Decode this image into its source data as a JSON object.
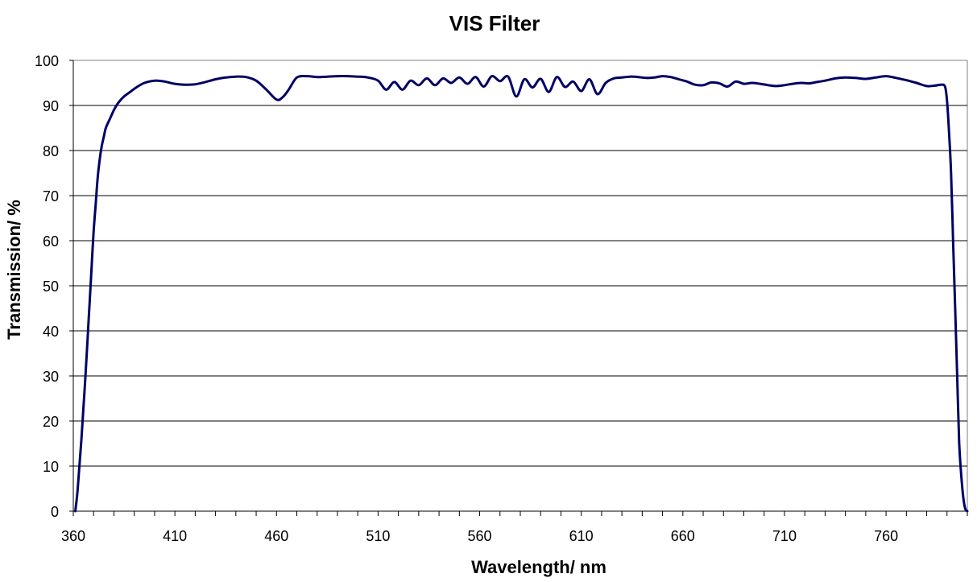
{
  "chart_data": {
    "type": "line",
    "title": "VIS Filter",
    "xlabel": "Wavelength/ nm",
    "ylabel": "Transmission/ %",
    "xlim": [
      360,
      800
    ],
    "ylim": [
      0,
      100
    ],
    "x_tick_labels": [
      "360",
      "410",
      "460",
      "510",
      "560",
      "610",
      "660",
      "710",
      "760"
    ],
    "x_ticks": [
      360,
      410,
      460,
      510,
      560,
      610,
      660,
      710,
      760
    ],
    "x_minor_tick_step": 10,
    "y_tick_labels": [
      "0",
      "10",
      "20",
      "30",
      "40",
      "50",
      "60",
      "70",
      "80",
      "90",
      "100"
    ],
    "y_ticks": [
      0,
      10,
      20,
      30,
      40,
      50,
      60,
      70,
      80,
      90,
      100
    ],
    "grid": "horizontal",
    "legend": "none",
    "line_color": "#000066",
    "series": [
      {
        "name": "Transmission",
        "x": [
          361,
          362,
          363,
          364,
          365,
          366,
          367,
          368,
          369,
          370,
          371,
          372,
          373,
          374,
          375,
          376,
          378,
          380,
          382,
          385,
          388,
          391,
          395,
          400,
          405,
          410,
          415,
          420,
          425,
          430,
          435,
          440,
          445,
          450,
          455,
          460,
          463,
          466,
          470,
          475,
          480,
          485,
          490,
          495,
          500,
          505,
          510,
          514,
          518,
          522,
          526,
          530,
          534,
          538,
          542,
          546,
          550,
          554,
          558,
          562,
          566,
          570,
          574,
          578,
          582,
          586,
          590,
          594,
          598,
          602,
          606,
          610,
          614,
          618,
          622,
          626,
          630,
          634,
          638,
          642,
          646,
          650,
          654,
          658,
          662,
          666,
          670,
          674,
          678,
          682,
          686,
          690,
          694,
          698,
          702,
          706,
          710,
          714,
          718,
          722,
          726,
          730,
          735,
          740,
          745,
          750,
          755,
          760,
          765,
          770,
          775,
          780,
          784,
          787,
          789,
          790,
          791,
          792,
          793,
          794,
          795,
          796,
          797,
          798,
          799,
          800
        ],
        "values": [
          0,
          4,
          10,
          16,
          23,
          30,
          38,
          46,
          54,
          62,
          68,
          74,
          78,
          81,
          83,
          85,
          87,
          89,
          90.5,
          92,
          93,
          94,
          95,
          95.5,
          95.3,
          94.8,
          94.6,
          94.7,
          95.2,
          95.8,
          96.2,
          96.4,
          96.3,
          95.5,
          93.5,
          91.3,
          91.8,
          93.5,
          96.2,
          96.5,
          96.3,
          96.4,
          96.5,
          96.5,
          96.4,
          96.2,
          95.5,
          93.5,
          95.2,
          93.5,
          95.5,
          94.5,
          96.0,
          94.5,
          96.0,
          95.0,
          96.2,
          94.8,
          96.3,
          94.2,
          96.5,
          95.4,
          96.4,
          92.0,
          95.8,
          94.0,
          95.9,
          93.0,
          96.3,
          94.1,
          95.3,
          93.2,
          95.8,
          92.5,
          95.0,
          96.0,
          96.2,
          96.4,
          96.3,
          96.1,
          96.2,
          96.5,
          96.3,
          95.8,
          95.3,
          94.6,
          94.5,
          95.1,
          94.9,
          94.2,
          95.3,
          94.8,
          95.0,
          94.8,
          94.5,
          94.3,
          94.5,
          94.8,
          95.0,
          94.9,
          95.2,
          95.5,
          96.0,
          96.2,
          96.1,
          95.9,
          96.2,
          96.5,
          96.1,
          95.6,
          95.0,
          94.3,
          94.4,
          94.6,
          94.2,
          91.0,
          84.0,
          75.0,
          60.0,
          45.0,
          30.0,
          15.0,
          8.0,
          3.0,
          0.5,
          0
        ],
        "_note": "values read from the plotted curve; ripple region approximated"
      }
    ]
  }
}
